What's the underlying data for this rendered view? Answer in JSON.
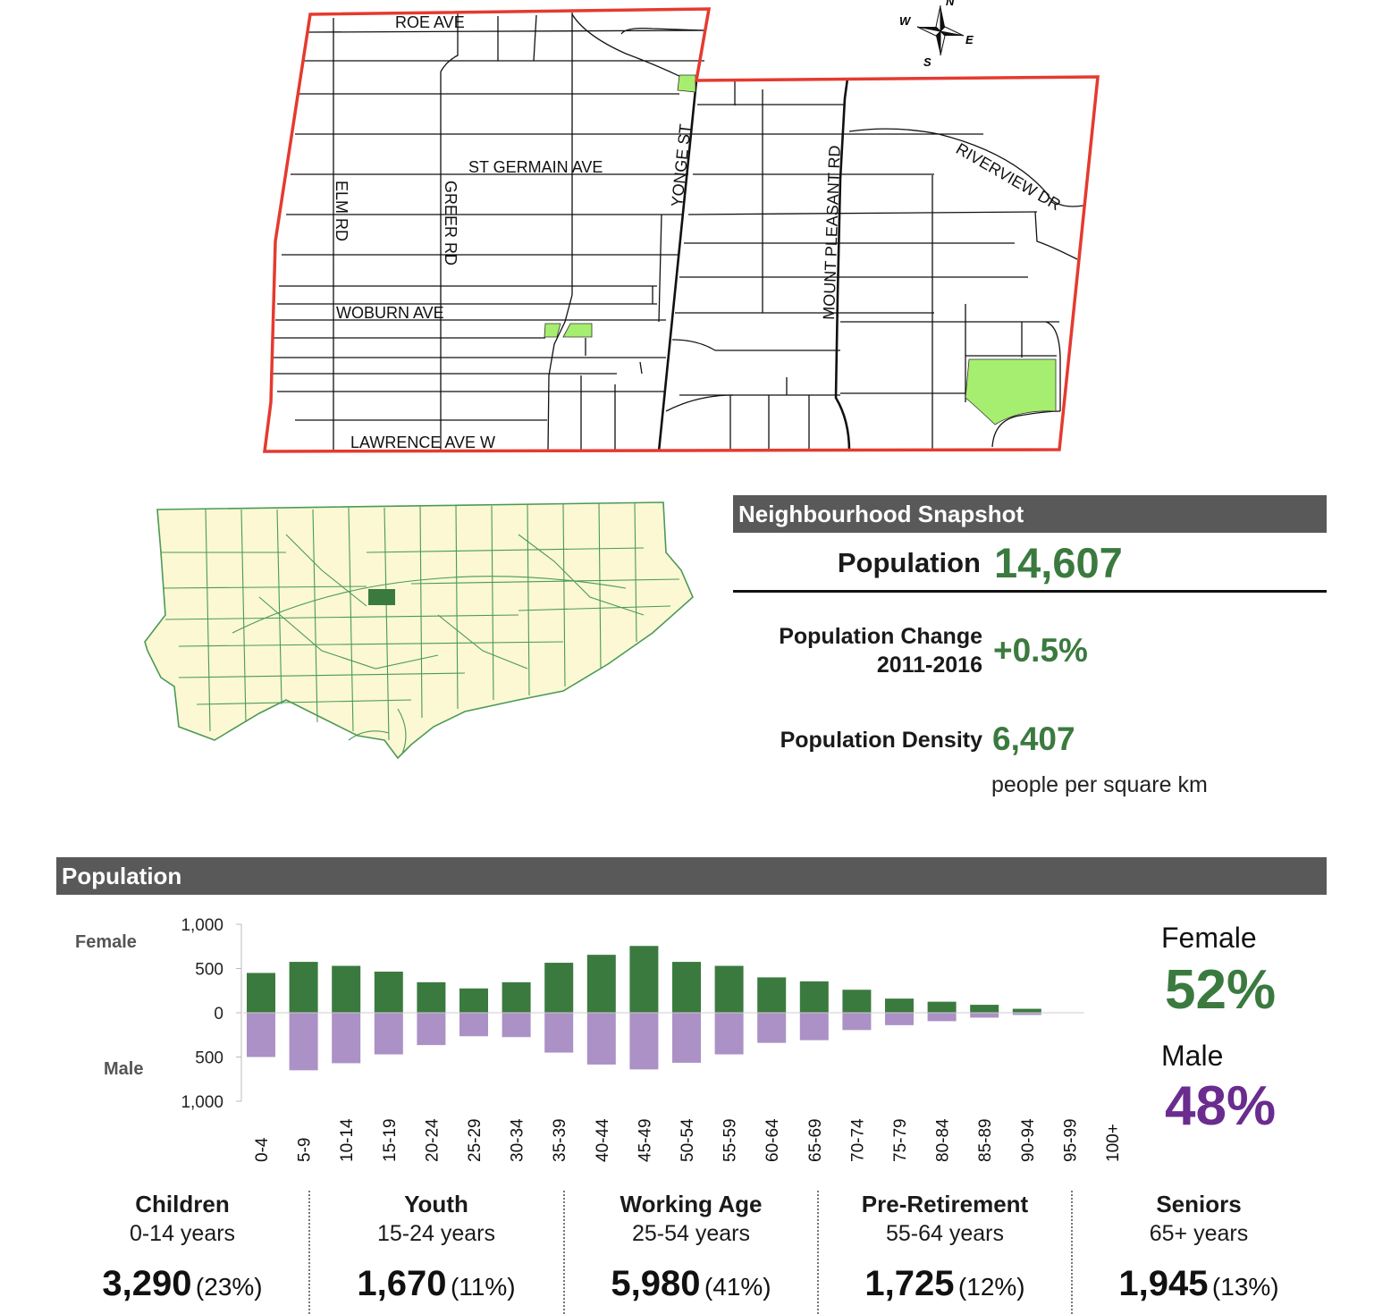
{
  "map": {
    "streets": {
      "roe": "ROE AVE",
      "st_germain": "ST GERMAIN AVE",
      "elm": "ELM RD",
      "greer": "GREER RD",
      "woburn": "WOBURN AVE",
      "lawrence": "LAWRENCE AVE W",
      "yonge": "YONGE ST",
      "mount_pleasant": "MOUNT PLEASANT RD",
      "riverview": "RIVERVIEW DR"
    },
    "compass": {
      "n": "N",
      "s": "S",
      "e": "E",
      "w": "W"
    },
    "colors": {
      "boundary": "#e53a2f",
      "park": "#a6ee6f",
      "street": "#111111"
    }
  },
  "city_map": {
    "colors": {
      "fill": "#fbf8d3",
      "lines": "#4a9a55",
      "highlight": "#3b7a3f"
    }
  },
  "snapshot": {
    "title": "Neighbourhood Snapshot",
    "population_label": "Population",
    "population_value": "14,607",
    "change_label_1": "Population Change",
    "change_label_2": "2011-2016",
    "change_value": "+0.5%",
    "density_label": "Population Density",
    "density_value": "6,407",
    "density_unit": "people per square km"
  },
  "population_section": {
    "title": "Population",
    "female_side_label": "Female",
    "male_side_label": "Male",
    "female_label": "Female",
    "female_pct": "52%",
    "male_label": "Male",
    "male_pct": "48%"
  },
  "chart_data": {
    "type": "bar",
    "categories": [
      "0-4",
      "5-9",
      "10-14",
      "15-19",
      "20-24",
      "25-29",
      "30-34",
      "35-39",
      "40-44",
      "45-49",
      "50-54",
      "55-59",
      "60-64",
      "65-69",
      "70-74",
      "75-79",
      "80-84",
      "85-89",
      "90-94",
      "95-99",
      "100+"
    ],
    "series": [
      {
        "name": "Female",
        "color": "#3b7a3f",
        "values": [
          450,
          575,
          530,
          465,
          345,
          275,
          345,
          565,
          655,
          755,
          575,
          530,
          400,
          355,
          260,
          160,
          125,
          90,
          45,
          5,
          0
        ]
      },
      {
        "name": "Male",
        "color": "#ab91c5",
        "values": [
          500,
          650,
          570,
          470,
          365,
          265,
          275,
          450,
          585,
          640,
          565,
          470,
          340,
          310,
          195,
          140,
          95,
          55,
          25,
          5,
          0
        ]
      }
    ],
    "ylim": [
      -1000,
      1000
    ],
    "ytick_labels": [
      "1,000",
      "500",
      "0",
      "500",
      "1,000"
    ]
  },
  "age_groups": [
    {
      "title": "Children",
      "range": "0-14 years",
      "count": "3,290",
      "pct": "(23%)"
    },
    {
      "title": "Youth",
      "range": "15-24 years",
      "count": "1,670",
      "pct": "(11%)"
    },
    {
      "title": "Working Age",
      "range": "25-54 years",
      "count": "5,980",
      "pct": "(41%)"
    },
    {
      "title": "Pre-Retirement",
      "range": "55-64 years",
      "count": "1,725",
      "pct": "(12%)"
    },
    {
      "title": "Seniors",
      "range": "65+ years",
      "count": "1,945",
      "pct": "(13%)"
    }
  ]
}
